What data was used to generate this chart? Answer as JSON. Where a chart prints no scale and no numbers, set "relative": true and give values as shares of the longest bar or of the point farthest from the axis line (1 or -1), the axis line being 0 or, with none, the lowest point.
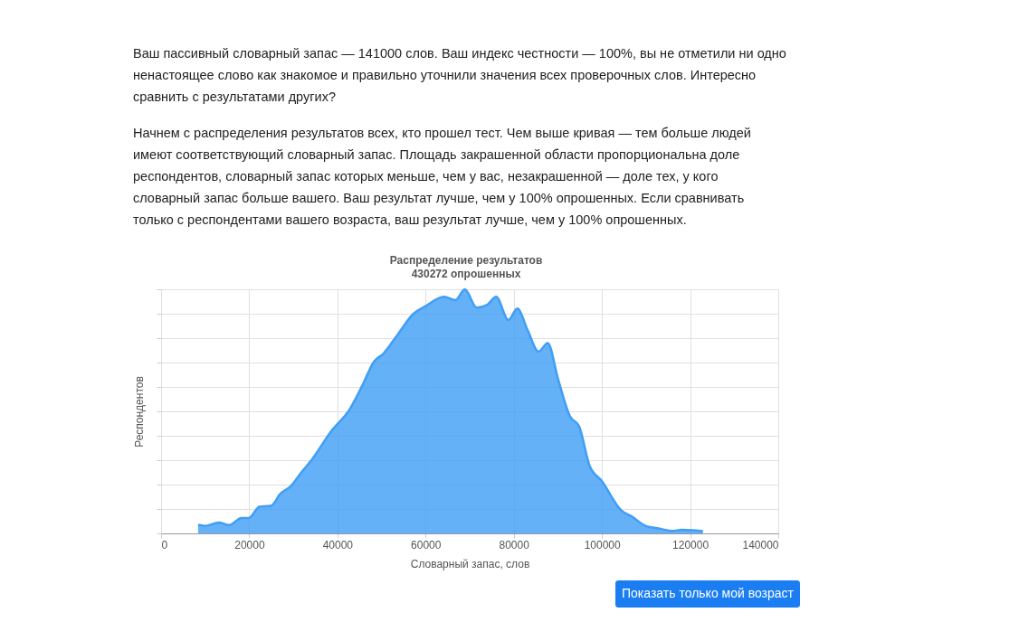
{
  "chart_data": {
    "type": "area",
    "title": "Распределение результатов",
    "subtitle": "430272 опрошенных",
    "xlabel": "Словарный запас, слов",
    "ylabel": "Респондентов",
    "relative": true,
    "x": [
      8400,
      10000,
      13080,
      15470,
      18200,
      19900,
      22300,
      24900,
      27100,
      29500,
      31900,
      33900,
      38700,
      42800,
      45600,
      48300,
      50400,
      53800,
      57200,
      60000,
      64200,
      66800,
      68900,
      71600,
      74000,
      76000,
      78800,
      80800,
      83200,
      85600,
      87700,
      90100,
      92800,
      94800,
      97200,
      100000,
      104400,
      106800,
      109900,
      113300,
      116000,
      118100,
      122900
    ],
    "series": [
      {
        "color": "#3f9ef6",
        "values": [
          0.035,
          0.031,
          0.044,
          0.034,
          0.063,
          0.063,
          0.109,
          0.113,
          0.163,
          0.195,
          0.252,
          0.295,
          0.421,
          0.509,
          0.604,
          0.704,
          0.736,
          0.818,
          0.899,
          0.931,
          0.969,
          0.956,
          1.0,
          0.925,
          0.937,
          0.969,
          0.874,
          0.921,
          0.83,
          0.745,
          0.78,
          0.629,
          0.478,
          0.44,
          0.277,
          0.214,
          0.094,
          0.069,
          0.031,
          0.019,
          0.01,
          0.015,
          0.009
        ]
      }
    ],
    "xlim": [
      0,
      140000
    ],
    "xticks": [
      0,
      20000,
      40000,
      60000,
      80000,
      100000,
      120000,
      140000
    ],
    "grid": true,
    "legend": false,
    "annotations": [
      "Ваш пассивный словарный запас — 141000 слов. Ваш индекс честности — 100%, вы не отметили ни одно ненастоящее слово как знакомое и правильно уточнили значения всех проверочных слов. Интересно сравнить с результатами других?",
      "Начнем с распределения результатов всех, кто прошел тест. Чем выше кривая — тем больше людей имеют соответствующий словарный запас. Площадь закрашенной области пропорциональна доле респондентов, словарный запас которых меньше, чем у вас, незакрашенной — доле тех, у кого словарный запас больше вашего. Ваш результат лучше, чем у 100% опрошенных. Если сравнивать только с респондентами вашего возраста, ваш результат лучше, чем у 100% опрошенных.",
      "Показать только мой возраст"
    ]
  }
}
